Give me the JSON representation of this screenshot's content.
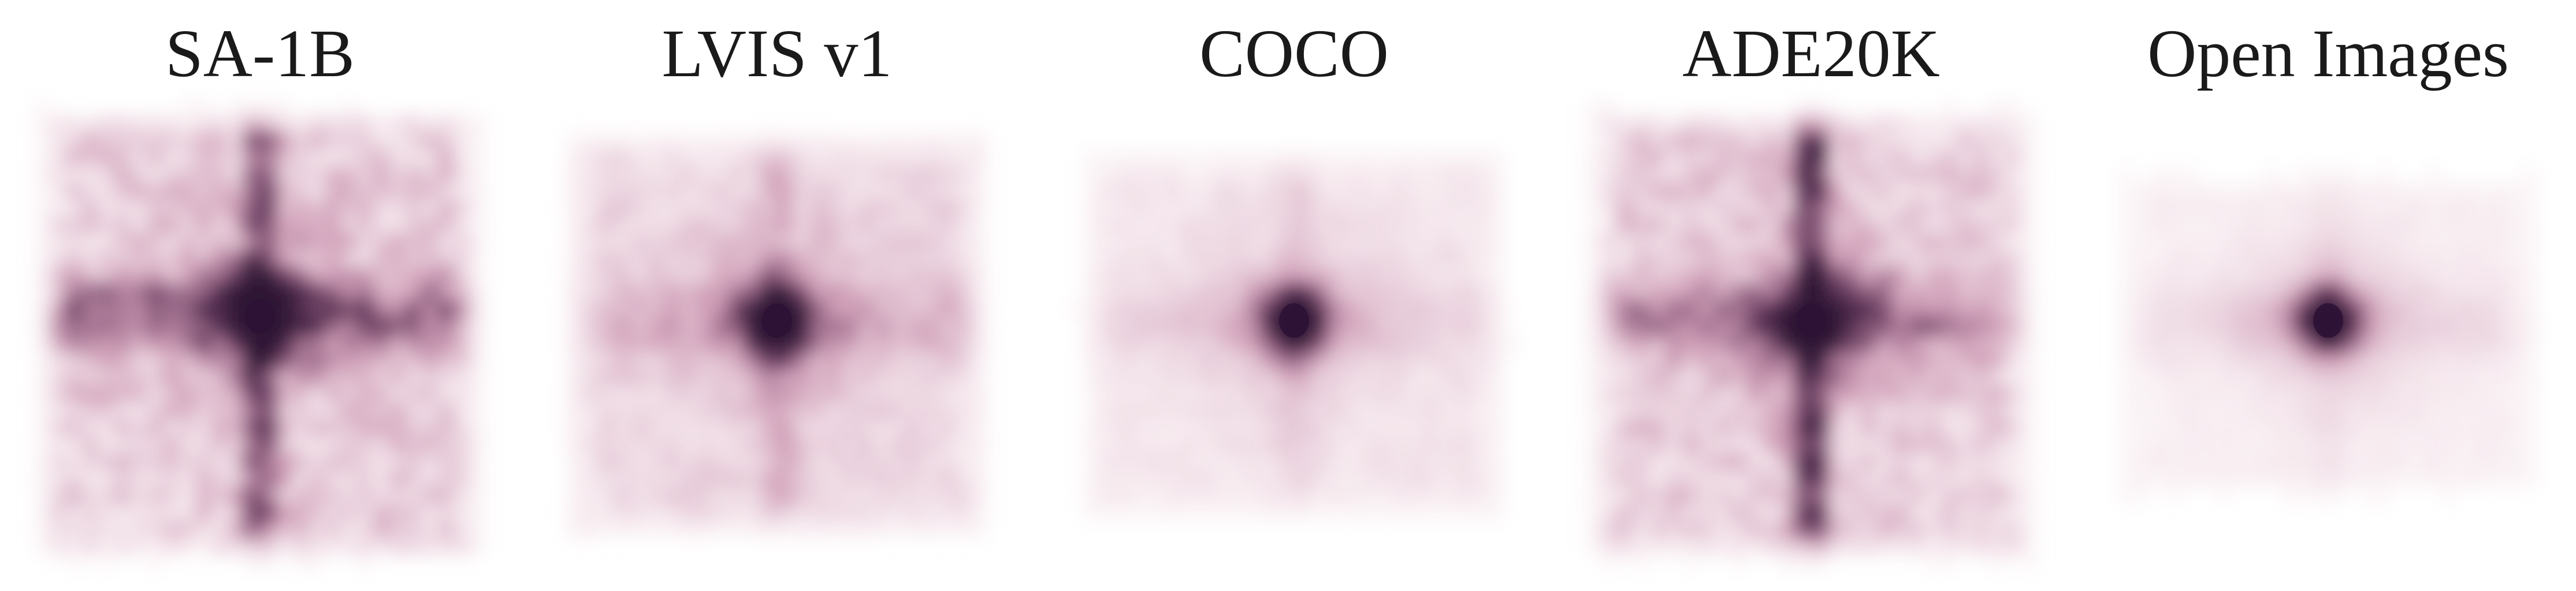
{
  "chart_data": {
    "type": "heatmap",
    "colors": {
      "low": "#f6e4ea",
      "mid": "#c07d9f",
      "high": "#2e1236"
    },
    "panels": [
      {
        "title": "SA-1B",
        "extent": [
          0.92,
          0.97
        ],
        "edge_softness": 0.16,
        "base": 0.3,
        "center_peak": [
          0.5,
          0.46
        ],
        "peak": 1.0,
        "vertical_band": 0.55,
        "horizontal_band": 0.4,
        "texture": 0.28
      },
      {
        "title": "LVIS v1",
        "extent": [
          0.9,
          0.88
        ],
        "edge_softness": 0.22,
        "base": 0.26,
        "center_peak": [
          0.5,
          0.47
        ],
        "peak": 0.95,
        "vertical_band": 0.18,
        "horizontal_band": 0.16,
        "texture": 0.16
      },
      {
        "title": "COCO",
        "extent": [
          0.92,
          0.8
        ],
        "edge_softness": 0.24,
        "base": 0.17,
        "center_peak": [
          0.5,
          0.47
        ],
        "peak": 0.92,
        "vertical_band": 0.14,
        "horizontal_band": 0.12,
        "texture": 0.1
      },
      {
        "title": "ADE20K",
        "extent": [
          0.92,
          0.97
        ],
        "edge_softness": 0.16,
        "base": 0.3,
        "center_peak": [
          0.5,
          0.47
        ],
        "peak": 0.98,
        "vertical_band": 0.72,
        "horizontal_band": 0.3,
        "texture": 0.26
      },
      {
        "title": "Open Images",
        "extent": [
          0.9,
          0.72
        ],
        "edge_softness": 0.26,
        "base": 0.1,
        "center_peak": [
          0.5,
          0.47
        ],
        "peak": 0.9,
        "vertical_band": 0.1,
        "horizontal_band": 0.14,
        "texture": 0.06
      }
    ]
  }
}
